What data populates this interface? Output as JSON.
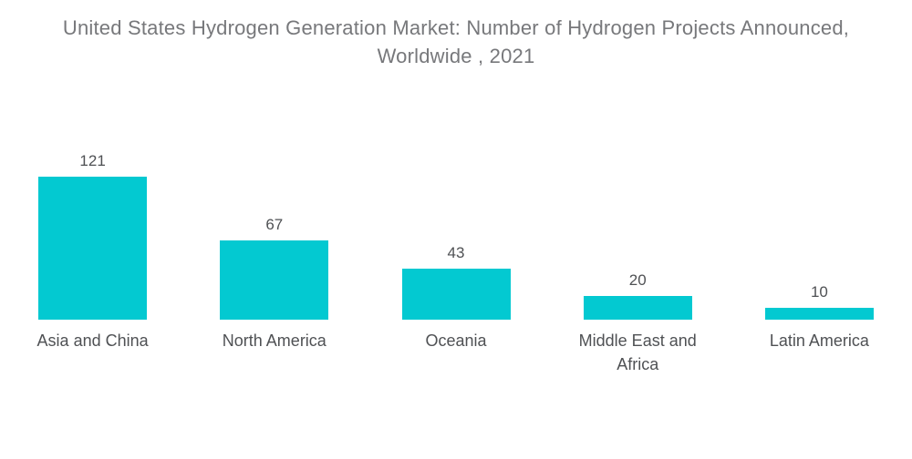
{
  "title": {
    "line1": "United States Hydrogen Generation Market: Number of Hydrogen Projects Announced,",
    "line2": "Worldwide , 2021"
  },
  "chart_data": {
    "type": "bar",
    "title": "United States Hydrogen Generation Market: Number of Hydrogen Projects Announced, Worldwide , 2021",
    "categories": [
      "Asia and China",
      "North America",
      "Oceania",
      "Middle East and Africa",
      "Latin America"
    ],
    "values": [
      121,
      67,
      43,
      20,
      10
    ],
    "xlabel": "",
    "ylabel": "",
    "ylim": [
      0,
      130
    ],
    "grid": false,
    "legend": false,
    "orientation": "vertical",
    "value_labels_shown": true,
    "bar_color": "#03C9D1"
  },
  "colors": {
    "bar": "#03C9D1",
    "title_text": "#77787B",
    "value_text": "#4F5154",
    "category_text": "#4F5154",
    "background": "#FFFFFF"
  }
}
